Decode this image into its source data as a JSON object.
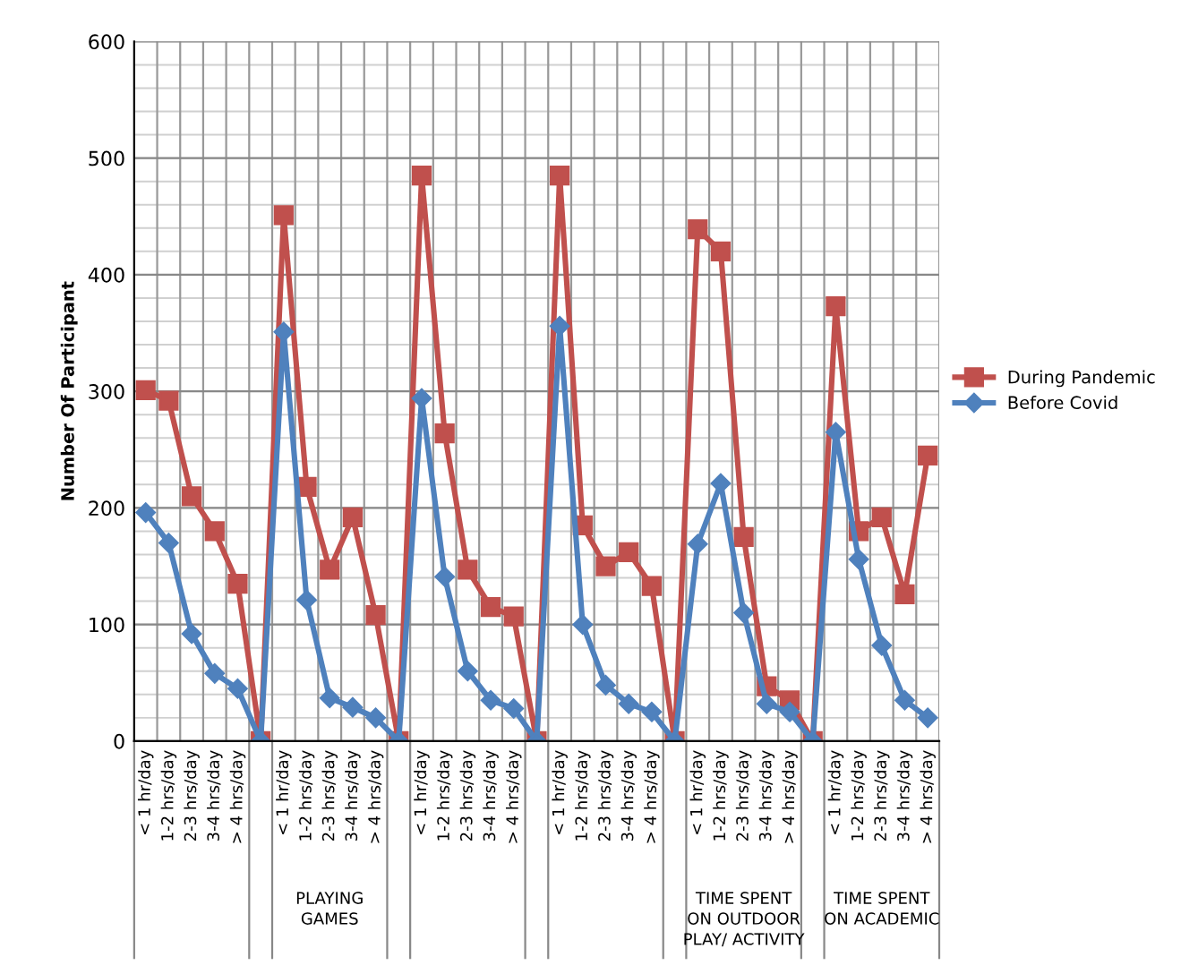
{
  "chart_data": {
    "type": "line",
    "categories": [
      "< 1 hr/day",
      "1-2 hrs/day",
      "2-3 hrs/day",
      "3-4 hrs/day",
      "> 4 hrs/day",
      null,
      "< 1 hr/day",
      "1-2 hrs/day",
      "2-3 hrs/day",
      "3-4 hrs/day",
      "> 4 hrs/day",
      null,
      "< 1 hr/day",
      "1-2 hrs/day",
      "2-3 hrs/day",
      "3-4 hrs/day",
      "> 4 hrs/day",
      null,
      "< 1 hr/day",
      "1-2 hrs/day",
      "2-3 hrs/day",
      "3-4 hrs/day",
      "> 4 hrs/day",
      null,
      "< 1 hr/day",
      "1-2 hrs/day",
      "2-3 hrs/day",
      "3-4 hrs/day",
      "> 4 hrs/day",
      null,
      "< 1 hr/day",
      "1-2 hrs/day",
      "2-3 hrs/day",
      "3-4 hrs/day",
      "> 4 hrs/day"
    ],
    "series": [
      {
        "name": "During Pandemic",
        "color": "#c0504d",
        "marker": "square",
        "values": [
          301,
          292,
          210,
          180,
          135,
          0,
          451,
          218,
          147,
          192,
          108,
          0,
          485,
          264,
          147,
          115,
          107,
          0,
          485,
          185,
          150,
          162,
          133,
          0,
          439,
          420,
          175,
          47,
          35,
          0,
          373,
          180,
          192,
          126,
          245
        ]
      },
      {
        "name": "Before Covid",
        "color": "#4f81bd",
        "marker": "diamond",
        "values": [
          196,
          170,
          92,
          58,
          45,
          0,
          351,
          121,
          37,
          29,
          20,
          0,
          294,
          141,
          60,
          35,
          28,
          0,
          356,
          100,
          48,
          32,
          25,
          0,
          169,
          221,
          110,
          32,
          25,
          0,
          265,
          156,
          82,
          35,
          20
        ]
      }
    ],
    "ylabel": "Number Of Participant",
    "ylim": [
      0,
      600
    ],
    "yticks": [
      0,
      100,
      200,
      300,
      400,
      500,
      600
    ],
    "annotations": [
      null,
      "PLAYING\nGAMES",
      null,
      null,
      "TIME SPENT\nON OUTDOOR\nPLAY/ ACTIVITY",
      "TIME SPENT\nON ACADEMIC"
    ],
    "grid": true,
    "legend": "right",
    "line_style": "solid"
  }
}
